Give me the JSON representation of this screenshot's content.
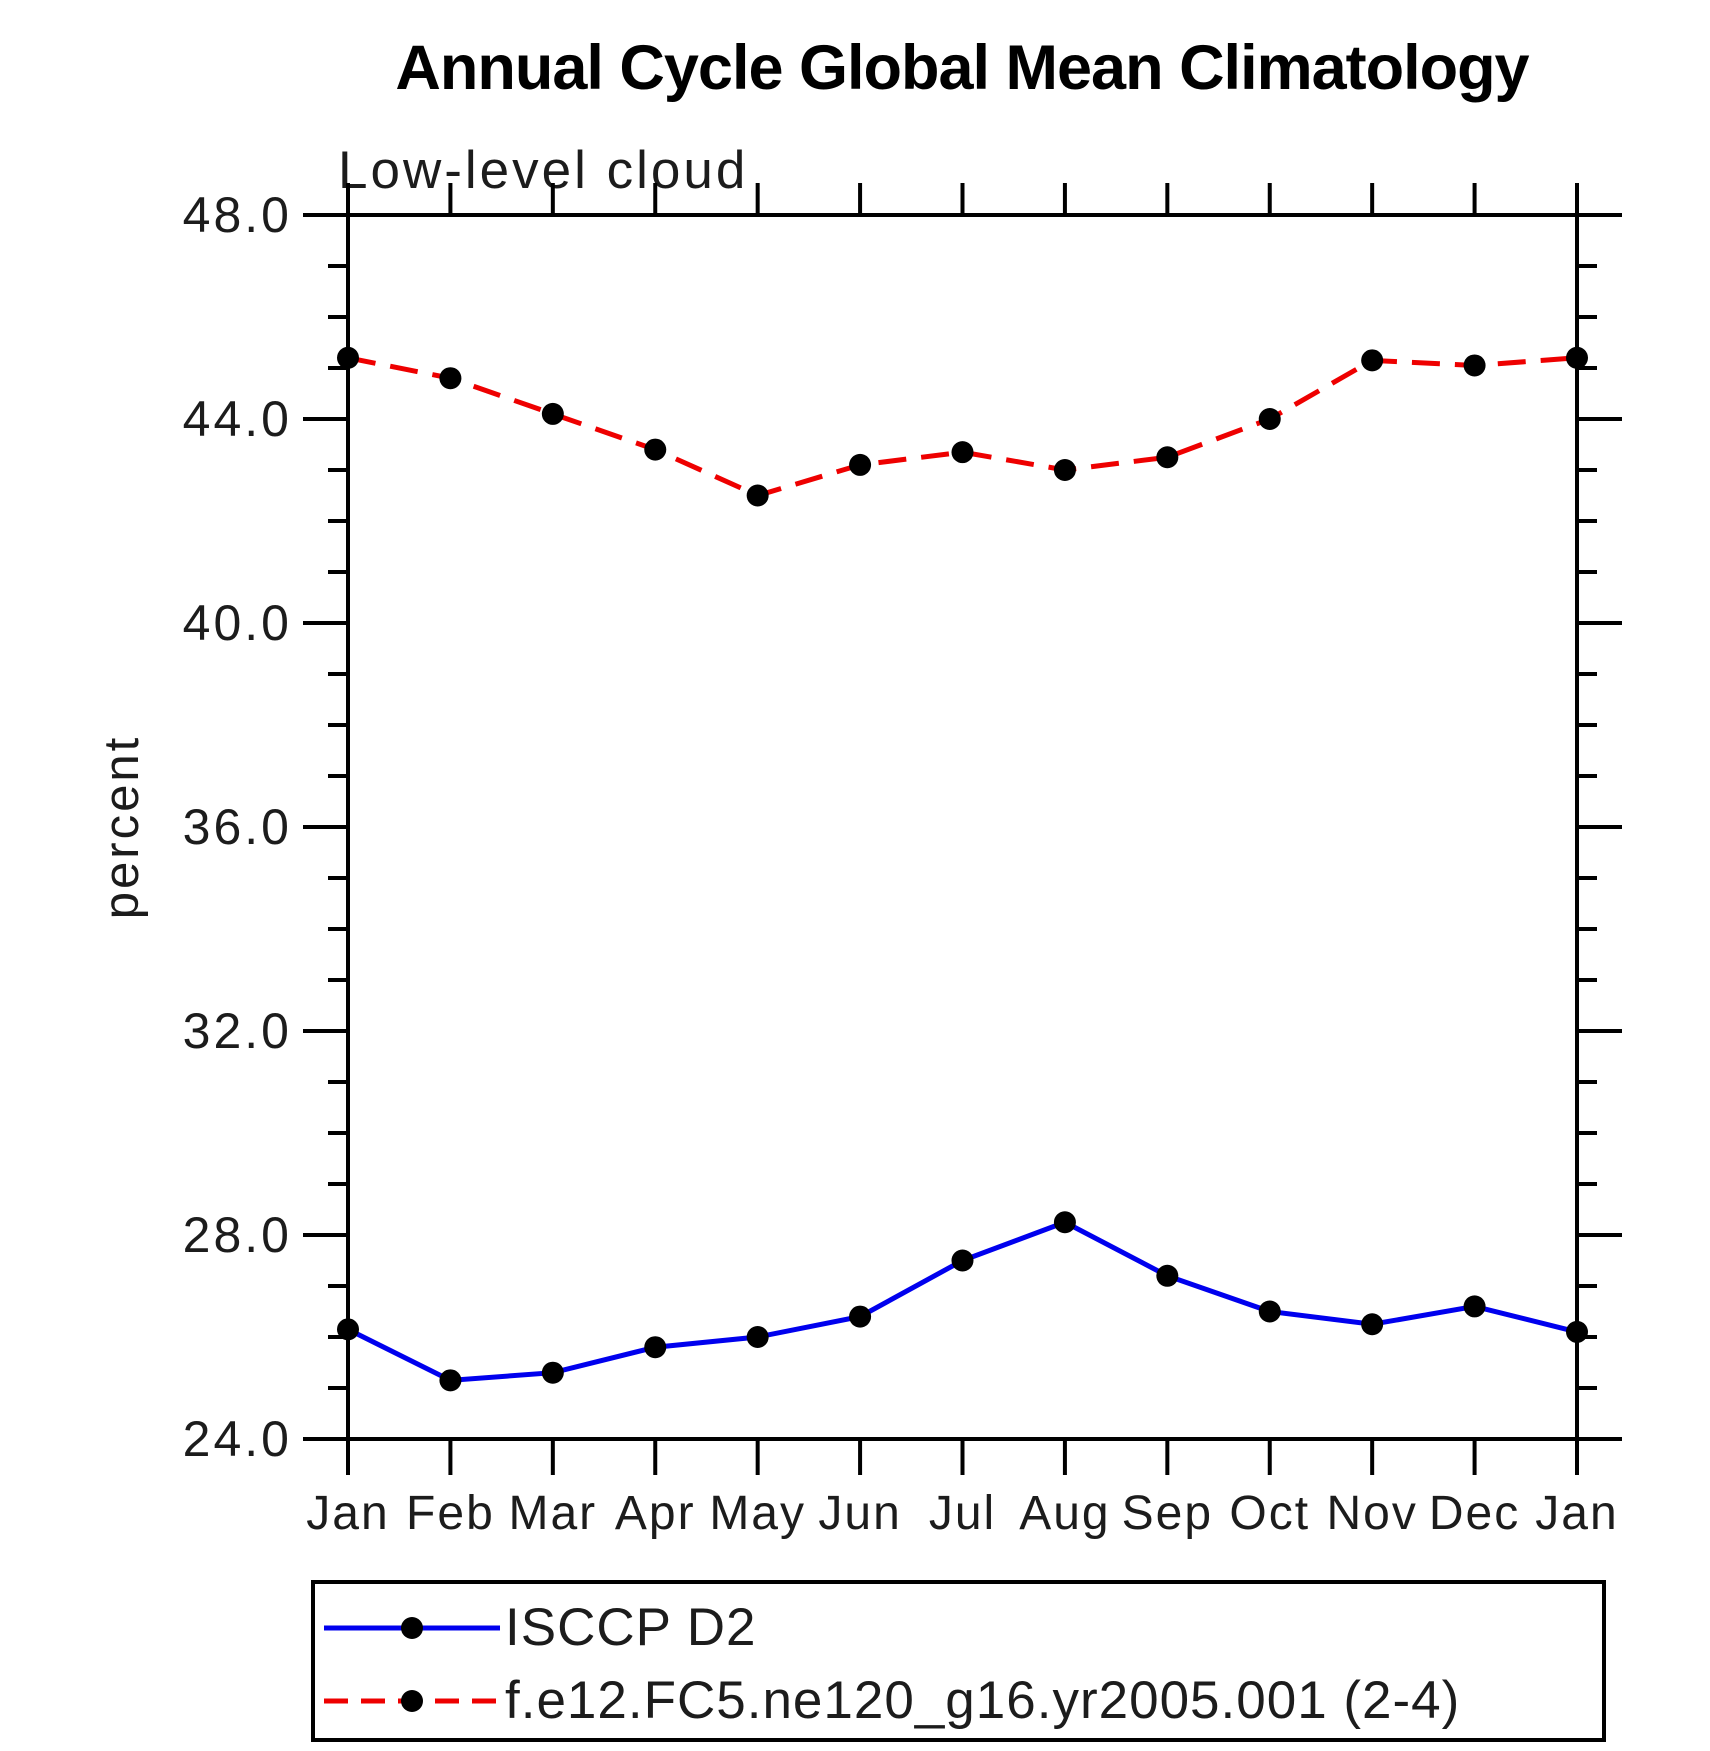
{
  "chart_data": {
    "type": "line",
    "title": "Annual Cycle Global Mean Climatology",
    "subtitle": "Low-level cloud",
    "ylabel": "percent",
    "xlabel": "",
    "x_tick_labels": [
      "Jan",
      "Feb",
      "Mar",
      "Apr",
      "May",
      "Jun",
      "Jul",
      "Aug",
      "Sep",
      "Oct",
      "Nov",
      "Dec",
      "Jan"
    ],
    "y_tick_labels": [
      "24.0",
      "28.0",
      "32.0",
      "36.0",
      "40.0",
      "44.0",
      "48.0"
    ],
    "y_ticks_major": [
      24,
      28,
      32,
      36,
      40,
      44,
      48
    ],
    "y_minor_step": 1,
    "ylim": [
      24.0,
      48.0
    ],
    "grid": false,
    "frame_color": "#000000",
    "marker_color": "#000000",
    "legend_position": "bottom",
    "series": [
      {
        "name": "ISCCP D2",
        "color": "#0000ee",
        "style": "solid",
        "marker": "circle",
        "values": [
          26.15,
          25.15,
          25.3,
          25.8,
          26.0,
          26.4,
          27.5,
          28.25,
          27.2,
          26.5,
          26.25,
          26.6,
          26.1
        ]
      },
      {
        "name": "f.e12.FC5.ne120_g16.yr2005.001 (2-4)",
        "color": "#ee0000",
        "style": "dashed",
        "marker": "circle",
        "values": [
          45.2,
          44.8,
          44.1,
          43.4,
          42.5,
          43.1,
          43.35,
          43.0,
          43.25,
          44.0,
          45.15,
          45.05,
          45.2
        ]
      }
    ]
  }
}
